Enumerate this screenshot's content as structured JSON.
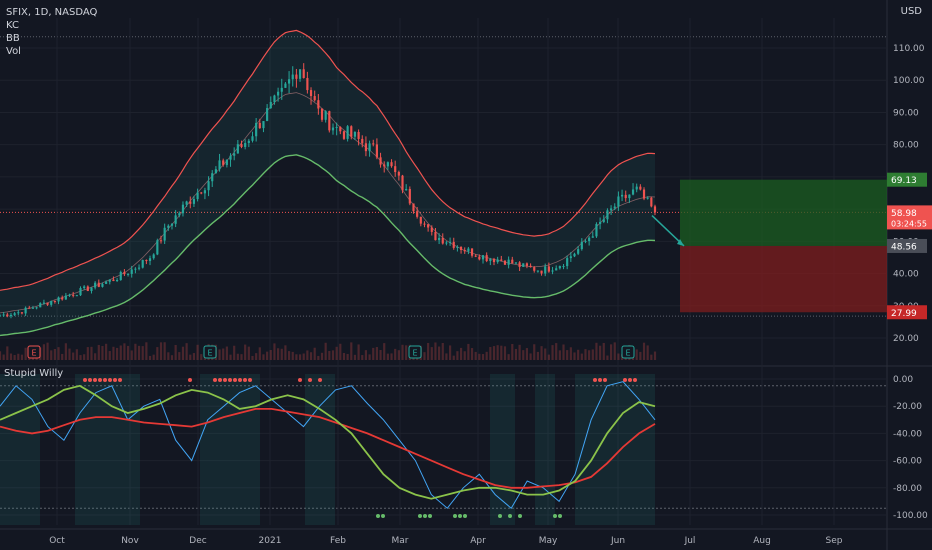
{
  "header": {
    "symbol_line": "SFIX, 1D, NASDAQ",
    "indicators": [
      "KC",
      "BB",
      "Vol"
    ],
    "currency": "USD"
  },
  "lower_pane": {
    "title": "Stupid Willy"
  },
  "colors": {
    "background": "#131722",
    "grid": "#1e222d",
    "axis_text": "#b2b5be",
    "candle_up": "#26a69a",
    "candle_down": "#ef5350",
    "kc_band": "#ef5350",
    "bb_band": "#4caf50",
    "osc_blue": "#42a5f5",
    "osc_red": "#e53935",
    "osc_green": "#8bc34a",
    "long_zone": "#1b5e20",
    "short_zone": "#7f1d1d",
    "price_tag_last": "#ef5350",
    "tag_gray": "#4a4e58"
  },
  "chart_data": [
    {
      "type": "candlestick",
      "x_labels": [
        "Oct",
        "Nov",
        "Dec",
        "2021",
        "Feb",
        "Mar",
        "Apr",
        "May",
        "Jun",
        "Jul",
        "Aug",
        "Sep"
      ],
      "y_ticks": [
        "110.00",
        "100.00",
        "90.00",
        "80.00",
        "70.00",
        "60.00",
        "50.00",
        "40.00",
        "30.00",
        "20.00"
      ],
      "ylim": [
        16,
        118
      ],
      "close_approx": [
        27,
        28,
        30,
        32,
        34,
        36,
        38,
        41,
        45,
        55,
        62,
        68,
        75,
        80,
        88,
        95,
        105,
        90,
        85,
        82,
        78,
        72,
        62,
        52,
        50,
        47,
        45,
        44,
        42,
        41,
        43,
        48,
        55,
        62,
        66,
        58.98
      ],
      "earnings_markers": [
        "E",
        "E",
        "E",
        "E"
      ],
      "price_tags": [
        {
          "label": "69.13",
          "kind": "target"
        },
        {
          "label": "58.98",
          "kind": "last"
        },
        {
          "label": "03:24:55",
          "kind": "countdown"
        },
        {
          "label": "48.56",
          "kind": "entry"
        },
        {
          "label": "27.99",
          "kind": "stop"
        }
      ]
    },
    {
      "type": "line",
      "title": "Stupid Willy",
      "y_ticks": [
        "0.00",
        "-20.00",
        "-40.00",
        "-60.00",
        "-80.00",
        "-100.00"
      ],
      "ylim": [
        -105,
        5
      ],
      "series": [
        {
          "values": [
            -20,
            -5,
            -15,
            -35,
            -45,
            -25,
            -10,
            -5,
            -30,
            -20,
            -15,
            -45,
            -60,
            -30,
            -20,
            -10,
            -5,
            -15,
            -25,
            -35,
            -20,
            -8,
            -5,
            -18,
            -30,
            -45,
            -60,
            -85,
            -95,
            -80,
            -70,
            -85,
            -95,
            -75,
            -80,
            -90,
            -70,
            -30,
            -5,
            -2,
            -15,
            -30
          ]
        },
        {
          "values": [
            -35,
            -38,
            -40,
            -38,
            -34,
            -30,
            -28,
            -28,
            -30,
            -32,
            -33,
            -34,
            -35,
            -32,
            -28,
            -25,
            -22,
            -22,
            -24,
            -26,
            -28,
            -32,
            -36,
            -40,
            -45,
            -50,
            -55,
            -60,
            -65,
            -70,
            -74,
            -78,
            -80,
            -80,
            -79,
            -78,
            -76,
            -72,
            -62,
            -50,
            -40,
            -33
          ]
        },
        {
          "values": [
            -30,
            -25,
            -20,
            -15,
            -8,
            -5,
            -12,
            -20,
            -25,
            -22,
            -18,
            -12,
            -8,
            -10,
            -15,
            -22,
            -20,
            -15,
            -12,
            -15,
            -22,
            -30,
            -40,
            -55,
            -70,
            -80,
            -85,
            -88,
            -85,
            -82,
            -80,
            -80,
            -82,
            -85,
            -85,
            -82,
            -75,
            -60,
            -40,
            -25,
            -17,
            -20
          ]
        }
      ]
    }
  ]
}
